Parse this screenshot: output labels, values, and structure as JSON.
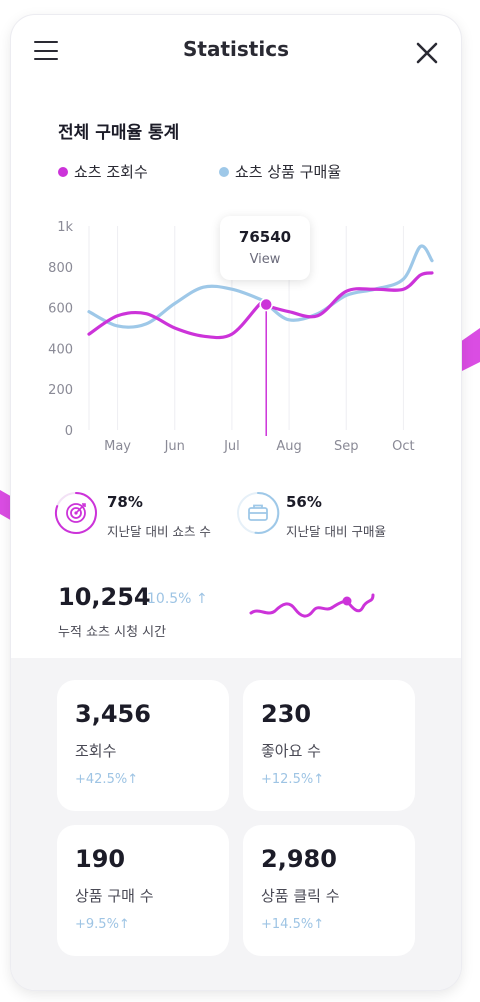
{
  "header": {
    "title": "Statistics",
    "menu_icon": "hamburger-menu-icon",
    "close_icon": "close-icon"
  },
  "chart_section": {
    "title": "전체 구매율 통계",
    "legend": [
      {
        "label": "쇼츠 조회수",
        "color": "#cc33d9"
      },
      {
        "label": "쇼츠 상품 구매율",
        "color": "#9ec8e8"
      }
    ],
    "tooltip": {
      "value": "76540",
      "label": "View"
    }
  },
  "chart_data": {
    "type": "line",
    "categories": [
      "May",
      "Jun",
      "Jul",
      "Aug",
      "Sep",
      "Oct"
    ],
    "y_tick_labels": [
      "0",
      "200",
      "400",
      "600",
      "800",
      "1k"
    ],
    "ylim": [
      0,
      1000
    ],
    "grid": "vertical",
    "x": [
      4.5,
      5.0,
      5.5,
      6.0,
      6.5,
      7.0,
      7.5,
      7.6,
      8.0,
      8.5,
      9.0,
      9.5,
      10.0,
      10.3,
      10.5
    ],
    "series": [
      {
        "name": "쇼츠 조회수",
        "color": "#cc33d9",
        "values": [
          470,
          560,
          570,
          500,
          460,
          470,
          620,
          610,
          580,
          560,
          680,
          690,
          690,
          760,
          770
        ]
      },
      {
        "name": "쇼츠 상품 구매율",
        "color": "#9ec8e8",
        "values": [
          580,
          510,
          520,
          620,
          700,
          690,
          640,
          620,
          540,
          570,
          660,
          690,
          740,
          900,
          830
        ]
      }
    ],
    "highlight": {
      "x": 7.6,
      "y": 615,
      "label": "76540"
    }
  },
  "kpis": [
    {
      "percent": "78%",
      "label": "지난달 대비 쇼츠 수",
      "icon": "target-icon",
      "color": "#cc33d9"
    },
    {
      "percent": "56%",
      "label": "지난달 대비 구매율",
      "icon": "briefcase-icon",
      "color": "#9ec8e8"
    }
  ],
  "watch_time": {
    "value": "10,254",
    "growth": "10.5%",
    "label": "누적 쇼츠 시청 시간"
  },
  "cards": [
    {
      "value": "3,456",
      "label": "조회수",
      "growth": "+42.5%"
    },
    {
      "value": "230",
      "label": "좋아요 수",
      "growth": "+12.5%"
    },
    {
      "value": "190",
      "label": "상품 구매 수",
      "growth": "+9.5%"
    },
    {
      "value": "2,980",
      "label": "상품 클릭 수",
      "growth": "+14.5%"
    }
  ]
}
